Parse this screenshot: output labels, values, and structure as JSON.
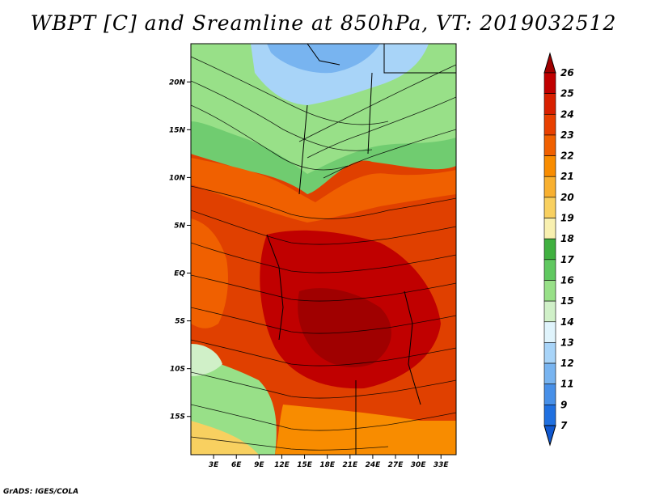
{
  "title": "WBPT [C] and Sreamline at 850hPa, VT: 2019032512",
  "footer": "GrADS: IGES/COLA",
  "map": {
    "lon_range": [
      0,
      35
    ],
    "lat_range": [
      -19,
      24
    ],
    "x_ticks": [
      "3E",
      "6E",
      "9E",
      "12E",
      "15E",
      "18E",
      "21E",
      "24E",
      "27E",
      "30E",
      "33E"
    ],
    "x_tick_values": [
      3,
      6,
      9,
      12,
      15,
      18,
      21,
      24,
      27,
      30,
      33
    ],
    "y_ticks": [
      "20N",
      "15N",
      "10N",
      "5N",
      "EQ",
      "5S",
      "10S",
      "15S"
    ],
    "y_tick_values": [
      20,
      15,
      10,
      5,
      0,
      -5,
      -10,
      -15
    ],
    "field": "wet-bulb potential temperature",
    "overlay": "streamlines"
  },
  "colorbar": {
    "levels": [
      "26",
      "25",
      "24",
      "23",
      "22",
      "21",
      "20",
      "19",
      "18",
      "17",
      "16",
      "15",
      "14",
      "13",
      "12",
      "11",
      "9",
      "7"
    ],
    "colors": [
      "#a00000",
      "#c00000",
      "#d82000",
      "#e84000",
      "#f06000",
      "#f88c00",
      "#f8b030",
      "#f8d060",
      "#f8f0b0",
      "#40b040",
      "#60c860",
      "#98e088",
      "#d0f0c8",
      "#e0f4fc",
      "#a8d4f8",
      "#78b4f0",
      "#4890e8",
      "#2070e0",
      "#1058d0"
    ]
  }
}
